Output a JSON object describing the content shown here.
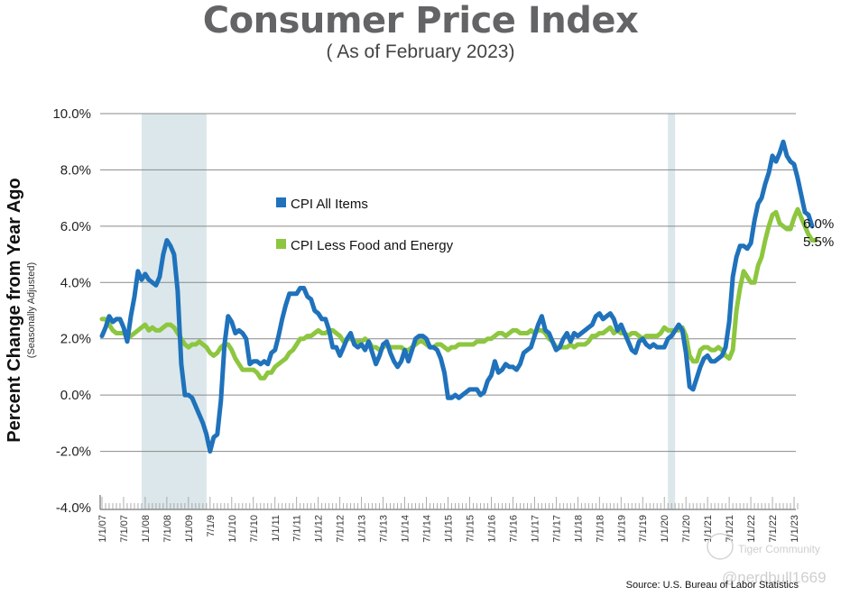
{
  "chart_data": {
    "type": "line",
    "title": "Consumer Price Index",
    "subtitle": "( As of February 2023)",
    "ylabel": "Percent Change from Year Ago",
    "ylabel_sub": "(Seasonally Adjusted)",
    "xlabel": "",
    "ylim": [
      -4.0,
      10.0
    ],
    "yticks": [
      -4.0,
      -2.0,
      0.0,
      2.0,
      4.0,
      6.0,
      8.0,
      10.0
    ],
    "ytick_labels": [
      "-4.0%",
      "-2.0%",
      "0.0%",
      "2.0%",
      "4.0%",
      "6.0%",
      "8.0%",
      "10.0%"
    ],
    "grid": true,
    "x_start": "2007-01",
    "x_end": "2023-02",
    "x_frequency": "monthly",
    "xtick_labels": [
      "1/1/07",
      "7/1/07",
      "1/1/08",
      "7/1/08",
      "1/1/09",
      "7/1/9",
      "1/1/10",
      "7/1/10",
      "1/1/11",
      "7/1/11",
      "1/1/12",
      "7/1/12",
      "1/1/13",
      "7/1/13",
      "1/1/14",
      "7/1/14",
      "1/1/15",
      "7/1/15",
      "1/1/16",
      "7/1/16",
      "1/1/17",
      "7/1/17",
      "1/1/18",
      "7/1/18",
      "1/1/19",
      "7/1/19",
      "1/1/20",
      "7/1/20",
      "1/1/21",
      "7/1/21",
      "1/1/22",
      "7/1/22",
      "1/1/23"
    ],
    "recessions": [
      {
        "start": "2007-12",
        "end": "2009-06"
      },
      {
        "start": "2020-02",
        "end": "2020-04"
      }
    ],
    "legend_placement": "upper-left-center",
    "series": [
      {
        "name": "CPI All Items",
        "color": "#1f72bb",
        "end_label": "6.0%",
        "values": [
          2.1,
          2.4,
          2.8,
          2.6,
          2.7,
          2.7,
          2.4,
          1.9,
          2.8,
          3.5,
          4.4,
          4.1,
          4.3,
          4.1,
          4.0,
          3.9,
          4.2,
          5.0,
          5.5,
          5.3,
          5.0,
          3.7,
          1.1,
          0.0,
          0.0,
          -0.1,
          -0.4,
          -0.7,
          -1.0,
          -1.4,
          -2.0,
          -1.5,
          -1.4,
          -0.2,
          1.8,
          2.8,
          2.6,
          2.2,
          2.3,
          2.2,
          2.0,
          1.1,
          1.2,
          1.2,
          1.1,
          1.2,
          1.1,
          1.5,
          1.6,
          2.1,
          2.7,
          3.2,
          3.6,
          3.6,
          3.6,
          3.8,
          3.8,
          3.5,
          3.4,
          3.0,
          2.9,
          2.7,
          2.7,
          2.3,
          1.7,
          1.7,
          1.4,
          1.7,
          2.0,
          2.2,
          1.8,
          1.7,
          1.8,
          1.6,
          1.9,
          1.5,
          1.1,
          1.4,
          1.8,
          1.9,
          1.5,
          1.2,
          1.0,
          1.2,
          1.6,
          1.2,
          1.6,
          2.0,
          2.1,
          2.1,
          2.0,
          1.7,
          1.7,
          1.6,
          1.3,
          0.8,
          -0.1,
          -0.1,
          0.0,
          -0.1,
          0.0,
          0.1,
          0.2,
          0.2,
          0.2,
          0.0,
          0.1,
          0.5,
          0.7,
          1.2,
          0.8,
          0.9,
          1.1,
          1.0,
          1.0,
          0.9,
          1.1,
          1.5,
          1.6,
          1.7,
          2.1,
          2.5,
          2.8,
          2.3,
          2.2,
          1.9,
          1.6,
          1.7,
          2.0,
          2.2,
          1.9,
          2.2,
          2.1,
          2.2,
          2.3,
          2.4,
          2.5,
          2.8,
          2.9,
          2.7,
          2.8,
          2.9,
          2.7,
          2.3,
          2.5,
          2.2,
          1.9,
          1.6,
          1.5,
          1.9,
          2.0,
          1.8,
          1.7,
          1.8,
          1.7,
          1.7,
          1.7,
          2.0,
          2.1,
          2.3,
          2.5,
          2.3,
          1.5,
          0.3,
          0.2,
          0.6,
          1.0,
          1.3,
          1.4,
          1.2,
          1.2,
          1.3,
          1.4,
          1.7,
          2.6,
          4.2,
          4.9,
          5.3,
          5.3,
          5.2,
          5.4,
          6.2,
          6.8,
          7.0,
          7.5,
          7.9,
          8.5,
          8.3,
          8.6,
          9.0,
          8.5,
          8.3,
          8.2,
          7.7,
          7.1,
          6.5,
          6.4,
          6.0
        ]
      },
      {
        "name": "CPI Less Food and Energy",
        "color": "#8dc63f",
        "end_label": "5.5%",
        "values": [
          2.7,
          2.7,
          2.5,
          2.3,
          2.2,
          2.2,
          2.2,
          2.1,
          2.1,
          2.2,
          2.3,
          2.4,
          2.5,
          2.3,
          2.4,
          2.3,
          2.3,
          2.4,
          2.5,
          2.5,
          2.4,
          2.2,
          2.0,
          1.8,
          1.7,
          1.8,
          1.8,
          1.9,
          1.8,
          1.7,
          1.5,
          1.4,
          1.5,
          1.7,
          1.8,
          1.8,
          1.6,
          1.3,
          1.1,
          0.9,
          0.9,
          0.9,
          0.9,
          0.8,
          0.6,
          0.6,
          0.8,
          0.8,
          1.0,
          1.1,
          1.2,
          1.3,
          1.5,
          1.6,
          1.8,
          2.0,
          2.0,
          2.1,
          2.1,
          2.2,
          2.3,
          2.2,
          2.2,
          2.3,
          2.3,
          2.2,
          2.1,
          1.9,
          2.0,
          2.0,
          1.9,
          1.9,
          1.9,
          2.0,
          1.9,
          1.7,
          1.7,
          1.6,
          1.7,
          1.8,
          1.7,
          1.7,
          1.7,
          1.7,
          1.6,
          1.6,
          1.7,
          1.8,
          1.9,
          1.9,
          1.8,
          1.7,
          1.7,
          1.8,
          1.8,
          1.7,
          1.6,
          1.7,
          1.7,
          1.8,
          1.8,
          1.8,
          1.8,
          1.8,
          1.9,
          1.9,
          1.9,
          2.0,
          2.0,
          2.1,
          2.2,
          2.2,
          2.1,
          2.2,
          2.3,
          2.3,
          2.2,
          2.2,
          2.2,
          2.3,
          2.2,
          2.3,
          2.3,
          2.2,
          2.0,
          1.9,
          1.7,
          1.7,
          1.7,
          1.7,
          1.8,
          1.7,
          1.8,
          1.8,
          1.8,
          1.9,
          2.1,
          2.1,
          2.2,
          2.2,
          2.3,
          2.4,
          2.2,
          2.3,
          2.2,
          2.2,
          2.1,
          2.2,
          2.2,
          2.1,
          2.0,
          2.1,
          2.1,
          2.1,
          2.1,
          2.2,
          2.4,
          2.3,
          2.3,
          2.3,
          2.3,
          2.4,
          2.1,
          1.4,
          1.2,
          1.2,
          1.6,
          1.7,
          1.7,
          1.6,
          1.6,
          1.7,
          1.6,
          1.4,
          1.3,
          1.6,
          3.0,
          3.8,
          4.4,
          4.2,
          4.0,
          4.0,
          4.6,
          4.9,
          5.5,
          6.0,
          6.4,
          6.5,
          6.1,
          6.0,
          5.9,
          5.9,
          6.3,
          6.6,
          6.3,
          6.0,
          5.7,
          5.5,
          5.5
        ]
      }
    ]
  },
  "source": "Source: U.S. Bureau of Labor Statistics",
  "watermark": {
    "brand": "Tiger Community",
    "handle": "@nerdbull1669"
  }
}
